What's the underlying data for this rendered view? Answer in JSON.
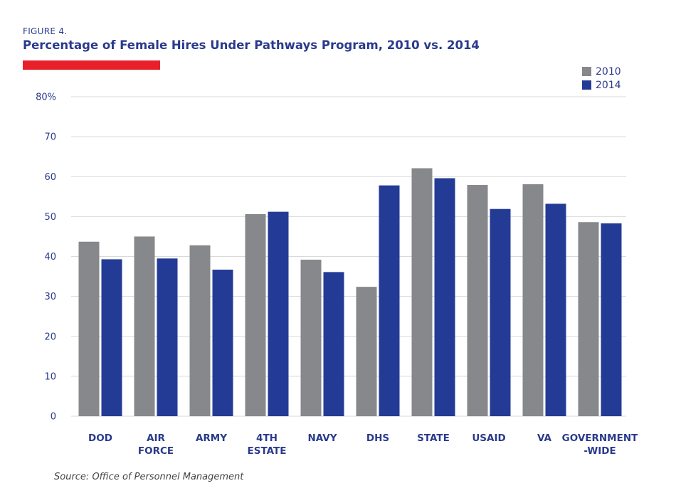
{
  "figure_label": "FIGURE 4.",
  "title": "Percentage of Female Hires Under Pathways Program, 2010 vs. 2014",
  "source": "Source: Office of Personnel Management",
  "colors": {
    "title": "#2a3a8c",
    "accent_bar": "#e8202a",
    "series_2010": "#86888b",
    "series_2014": "#243b95",
    "gridline": "#d9d9d9"
  },
  "legend": {
    "items": [
      {
        "label": "2010"
      },
      {
        "label": "2014"
      }
    ]
  },
  "chart_data": {
    "type": "bar",
    "categories": [
      [
        "DOD"
      ],
      [
        "AIR",
        "FORCE"
      ],
      [
        "ARMY"
      ],
      [
        "4TH",
        "ESTATE"
      ],
      [
        "NAVY"
      ],
      [
        "DHS"
      ],
      [
        "STATE"
      ],
      [
        "USAID"
      ],
      [
        "VA"
      ],
      [
        "GOVERNMENT",
        "-WIDE"
      ]
    ],
    "series": [
      {
        "name": "2010",
        "values": [
          43.7,
          45.0,
          42.8,
          50.6,
          39.2,
          32.4,
          62.1,
          57.9,
          58.1,
          48.6
        ]
      },
      {
        "name": "2014",
        "values": [
          39.3,
          39.5,
          36.7,
          51.2,
          36.1,
          57.8,
          59.6,
          51.9,
          53.2,
          48.3
        ]
      }
    ],
    "ylim": [
      0,
      80
    ],
    "yticks": [
      "0",
      "10",
      "20",
      "30",
      "40",
      "50",
      "60",
      "70",
      "80%"
    ],
    "grid": true,
    "legend_position": "top-right"
  }
}
